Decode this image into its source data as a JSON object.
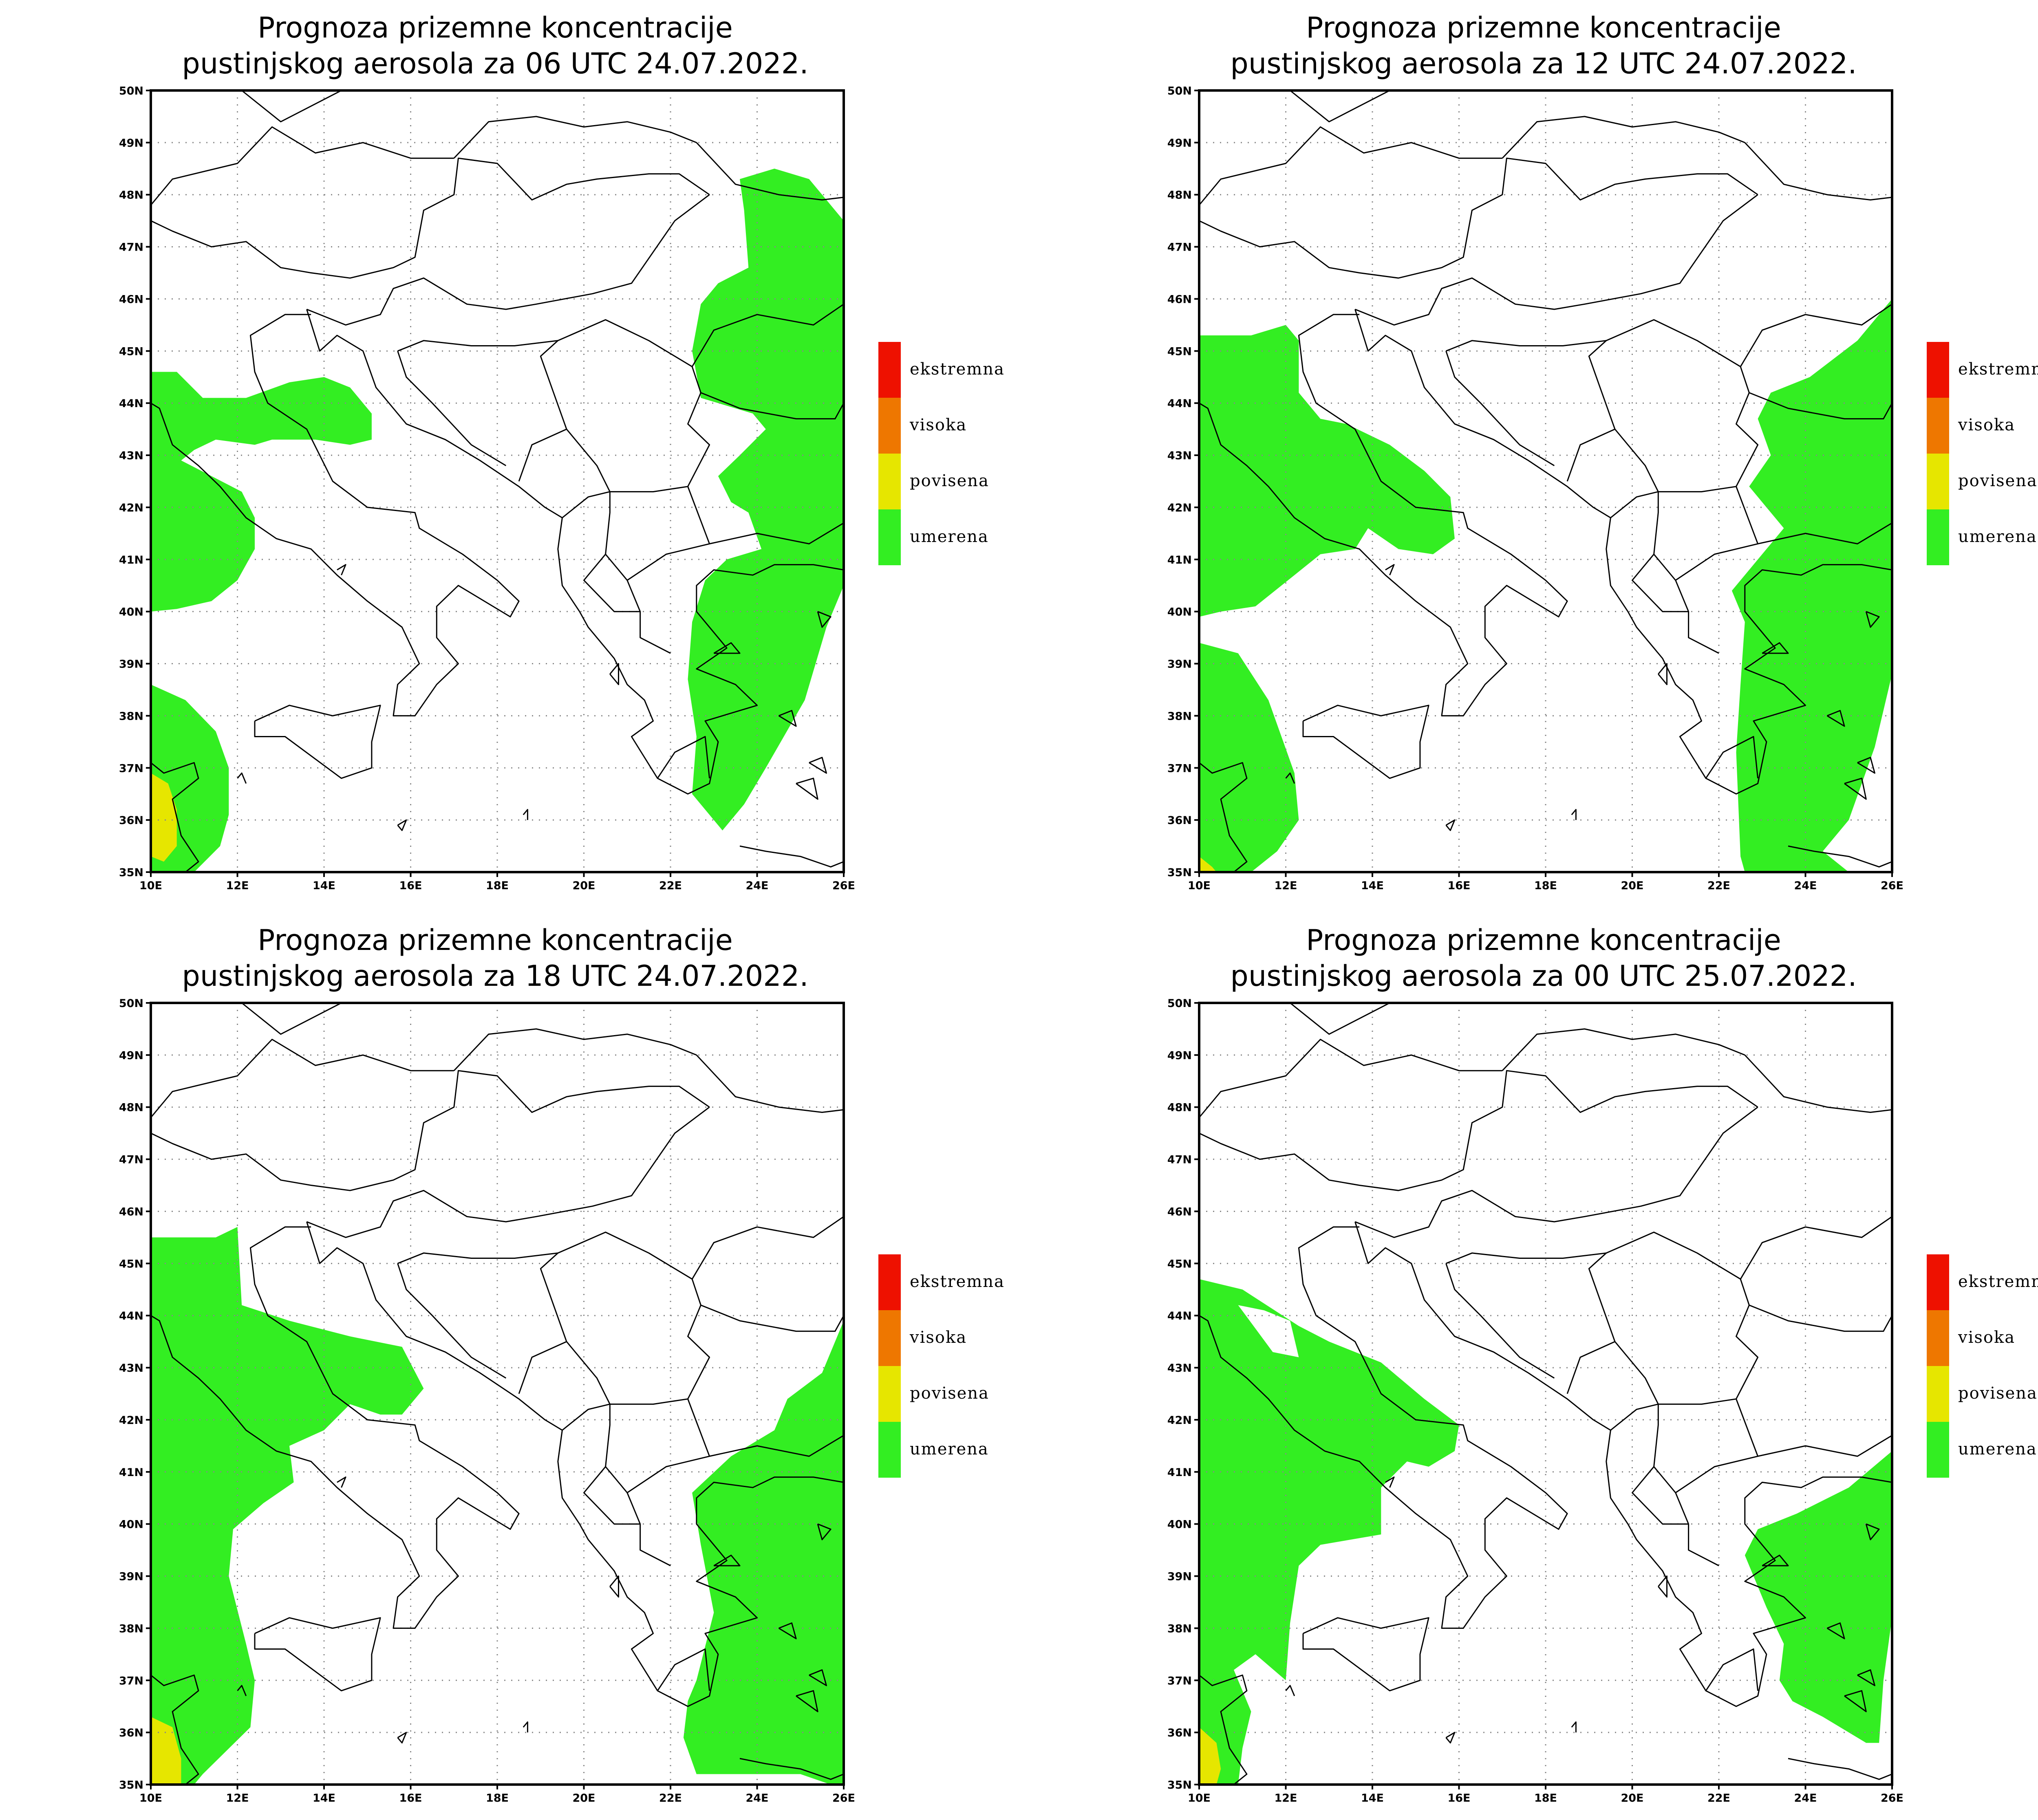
{
  "colors": {
    "umerena": "#33ee22",
    "povisena": "#e6e600",
    "visoka": "#ee7700",
    "ekstremna": "#ee1100",
    "border": "#000000",
    "grid": "#888888"
  },
  "legend": [
    {
      "key": "ekstremna",
      "label": "ekstremna"
    },
    {
      "key": "visoka",
      "label": "visoka"
    },
    {
      "key": "povisena",
      "label": "povisena"
    },
    {
      "key": "umerena",
      "label": "umerena"
    }
  ],
  "axes": {
    "lon_range": [
      10,
      26
    ],
    "lat_range": [
      35,
      50
    ],
    "x_ticks": [
      "10E",
      "12E",
      "14E",
      "16E",
      "18E",
      "20E",
      "22E",
      "24E",
      "26E"
    ],
    "y_ticks": [
      "50N",
      "49N",
      "48N",
      "47N",
      "46N",
      "45N",
      "44N",
      "43N",
      "42N",
      "41N",
      "40N",
      "39N",
      "38N",
      "37N",
      "36N",
      "35N"
    ],
    "grid": "dotted"
  },
  "panels": [
    {
      "title_line1": "Prognoza prizemne koncentracije",
      "title_line2": "pustinjskog aerosola za 06 UTC 24.07.2022.",
      "areas": [
        {
          "level": "umerena",
          "points": [
            [
              10,
              44.6
            ],
            [
              10.6,
              44.6
            ],
            [
              11.2,
              44.1
            ],
            [
              12.2,
              44.1
            ],
            [
              13.2,
              44.4
            ],
            [
              14,
              44.5
            ],
            [
              14.6,
              44.3
            ],
            [
              15.1,
              43.8
            ],
            [
              15.1,
              43.3
            ],
            [
              14.6,
              43.2
            ],
            [
              13.8,
              43.3
            ],
            [
              12.8,
              43.3
            ],
            [
              12.4,
              43.2
            ],
            [
              11.5,
              43.3
            ],
            [
              11,
              43.1
            ],
            [
              10.7,
              42.9
            ],
            [
              11.4,
              42.6
            ],
            [
              12.1,
              42.3
            ],
            [
              12.4,
              41.8
            ],
            [
              12.4,
              41.2
            ],
            [
              12,
              40.6
            ],
            [
              11.4,
              40.2
            ],
            [
              10.6,
              40.05
            ],
            [
              10,
              40.0
            ]
          ]
        },
        {
          "level": "umerena",
          "points": [
            [
              10,
              38.6
            ],
            [
              10.8,
              38.3
            ],
            [
              11.5,
              37.7
            ],
            [
              11.8,
              37
            ],
            [
              11.8,
              36.1
            ],
            [
              11.6,
              35.5
            ],
            [
              11,
              35
            ],
            [
              10,
              35
            ]
          ]
        },
        {
          "level": "umerena",
          "points": [
            [
              23.6,
              48.3
            ],
            [
              24.4,
              48.5
            ],
            [
              25.2,
              48.3
            ],
            [
              25.6,
              47.9
            ],
            [
              26,
              47.5
            ],
            [
              26,
              40.5
            ],
            [
              25.6,
              39.7
            ],
            [
              25.1,
              38.3
            ],
            [
              24.2,
              37
            ],
            [
              23.7,
              36.3
            ],
            [
              23.2,
              35.8
            ],
            [
              22.5,
              36.5
            ],
            [
              22.6,
              37.6
            ],
            [
              22.4,
              38.7
            ],
            [
              22.5,
              39.8
            ],
            [
              22.8,
              40.6
            ],
            [
              23.3,
              41
            ],
            [
              24.1,
              41.2
            ],
            [
              23.8,
              41.9
            ],
            [
              23.4,
              42.1
            ],
            [
              23.1,
              42.6
            ],
            [
              23.6,
              43
            ],
            [
              24.2,
              43.5
            ],
            [
              23.9,
              43.8
            ],
            [
              22.7,
              44.1
            ],
            [
              22.5,
              45
            ],
            [
              22.7,
              45.9
            ],
            [
              23.1,
              46.3
            ],
            [
              23.8,
              46.6
            ],
            [
              23.7,
              47.7
            ]
          ]
        },
        {
          "level": "povisena",
          "points": [
            [
              10,
              36.9
            ],
            [
              10.4,
              36.7
            ],
            [
              10.6,
              36.2
            ],
            [
              10.6,
              35.5
            ],
            [
              10.3,
              35.2
            ],
            [
              10,
              35.3
            ]
          ]
        }
      ]
    },
    {
      "title_line1": "Prognoza prizemne koncentracije",
      "title_line2": "pustinjskog aerosola za 12 UTC 24.07.2022.",
      "areas": [
        {
          "level": "umerena",
          "points": [
            [
              10,
              45.3
            ],
            [
              11.2,
              45.3
            ],
            [
              12,
              45.5
            ],
            [
              12.3,
              45.2
            ],
            [
              12.3,
              44.2
            ],
            [
              12.8,
              43.7
            ],
            [
              13.4,
              43.6
            ],
            [
              14.4,
              43.2
            ],
            [
              15.2,
              42.7
            ],
            [
              15.8,
              42.2
            ],
            [
              15.9,
              41.4
            ],
            [
              15.4,
              41.1
            ],
            [
              14.6,
              41.2
            ],
            [
              13.9,
              41.6
            ],
            [
              13.6,
              41.2
            ],
            [
              12.8,
              41.1
            ],
            [
              12.2,
              40.7
            ],
            [
              11.3,
              40.1
            ],
            [
              10.5,
              40
            ],
            [
              10,
              39.9
            ]
          ]
        },
        {
          "level": "umerena",
          "points": [
            [
              10,
              39.4
            ],
            [
              10.9,
              39.2
            ],
            [
              11.6,
              38.3
            ],
            [
              12.2,
              36.9
            ],
            [
              12.3,
              36
            ],
            [
              11.8,
              35.4
            ],
            [
              11.2,
              35
            ],
            [
              10,
              35
            ]
          ]
        },
        {
          "level": "umerena",
          "points": [
            [
              26,
              46
            ],
            [
              25.2,
              45.2
            ],
            [
              24.1,
              44.5
            ],
            [
              23.2,
              44.2
            ],
            [
              22.9,
              43.7
            ],
            [
              23.2,
              43
            ],
            [
              22.7,
              42.4
            ],
            [
              23.5,
              41.6
            ],
            [
              22.7,
              40.8
            ],
            [
              22.3,
              40.4
            ],
            [
              22.6,
              39.8
            ],
            [
              22.5,
              38.6
            ],
            [
              22.4,
              37.3
            ],
            [
              22.5,
              35.3
            ],
            [
              22.6,
              35
            ],
            [
              25,
              35
            ],
            [
              24.4,
              35.4
            ],
            [
              25,
              36
            ],
            [
              25.6,
              37.4
            ],
            [
              26,
              38.8
            ]
          ]
        },
        {
          "level": "povisena",
          "points": [
            [
              10,
              35.3
            ],
            [
              10.3,
              35.1
            ],
            [
              10.4,
              35
            ],
            [
              10,
              35
            ]
          ]
        }
      ]
    },
    {
      "title_line1": "Prognoza prizemne koncentracije",
      "title_line2": "pustinjskog aerosola za 18 UTC 24.07.2022.",
      "areas": [
        {
          "level": "umerena",
          "points": [
            [
              10,
              45.5
            ],
            [
              11.5,
              45.5
            ],
            [
              12,
              45.7
            ],
            [
              12.1,
              44.2
            ],
            [
              13.2,
              43.9
            ],
            [
              14.6,
              43.6
            ],
            [
              15.8,
              43.4
            ],
            [
              16.3,
              42.6
            ],
            [
              15.8,
              42.1
            ],
            [
              15.3,
              42.1
            ],
            [
              14.6,
              42.3
            ],
            [
              14,
              41.8
            ],
            [
              13.2,
              41.5
            ],
            [
              13.3,
              40.8
            ],
            [
              12.6,
              40.4
            ],
            [
              11.9,
              39.9
            ],
            [
              11.8,
              39
            ],
            [
              12.2,
              37.7
            ],
            [
              12.4,
              37
            ],
            [
              12.3,
              36.1
            ],
            [
              11.2,
              35.2
            ],
            [
              11,
              35
            ],
            [
              10,
              35
            ]
          ]
        },
        {
          "level": "umerena",
          "points": [
            [
              26,
              43.9
            ],
            [
              25.5,
              42.9
            ],
            [
              24.7,
              42.4
            ],
            [
              24.4,
              41.8
            ],
            [
              23.4,
              41.3
            ],
            [
              22.5,
              40.6
            ],
            [
              22.7,
              39.6
            ],
            [
              23,
              38.3
            ],
            [
              22.6,
              37
            ],
            [
              22.4,
              36.6
            ],
            [
              22.3,
              35.9
            ],
            [
              22.6,
              35.2
            ],
            [
              25,
              35.2
            ],
            [
              25.7,
              35
            ],
            [
              26,
              35
            ]
          ]
        },
        {
          "level": "povisena",
          "points": [
            [
              10,
              36.3
            ],
            [
              10.5,
              36.1
            ],
            [
              10.7,
              35.5
            ],
            [
              10.7,
              35
            ],
            [
              10,
              35
            ]
          ]
        }
      ]
    },
    {
      "title_line1": "Prognoza prizemne koncentracije",
      "title_line2": "pustinjskog aerosola za 00 UTC 25.07.2022.",
      "areas": [
        {
          "level": "umerena",
          "points": [
            [
              10,
              44.7
            ],
            [
              11,
              44.5
            ],
            [
              12.3,
              43.8
            ],
            [
              13,
              43.5
            ],
            [
              14.2,
              43.1
            ],
            [
              15.2,
              42.4
            ],
            [
              16,
              41.9
            ],
            [
              15.9,
              41.4
            ],
            [
              15.3,
              41.1
            ],
            [
              14.8,
              41.2
            ],
            [
              14.2,
              40.7
            ],
            [
              14.2,
              39.8
            ],
            [
              13.5,
              39.7
            ],
            [
              12.8,
              39.6
            ],
            [
              12.3,
              39.2
            ],
            [
              12.1,
              38.1
            ],
            [
              12,
              37
            ],
            [
              11.3,
              37.5
            ],
            [
              10.8,
              37.2
            ],
            [
              11.2,
              36.4
            ],
            [
              11,
              35.7
            ],
            [
              10.9,
              35
            ],
            [
              10,
              35
            ]
          ]
        },
        {
          "level": "hole",
          "points": [
            [
              10.9,
              44.2
            ],
            [
              11.7,
              43.3
            ],
            [
              12.3,
              43.2
            ],
            [
              12.1,
              43.9
            ],
            [
              11.5,
              44.1
            ]
          ]
        },
        {
          "level": "umerena",
          "points": [
            [
              26,
              41.4
            ],
            [
              25,
              40.7
            ],
            [
              23.8,
              40.2
            ],
            [
              22.9,
              39.9
            ],
            [
              22.6,
              39.4
            ],
            [
              23.1,
              38.4
            ],
            [
              23.5,
              37.7
            ],
            [
              23.4,
              37
            ],
            [
              23.7,
              36.6
            ],
            [
              24.4,
              36.3
            ],
            [
              25.4,
              35.8
            ],
            [
              25.7,
              35.8
            ],
            [
              25.8,
              37
            ],
            [
              26,
              38.2
            ]
          ]
        },
        {
          "level": "povisena",
          "points": [
            [
              10,
              36.1
            ],
            [
              10.4,
              35.8
            ],
            [
              10.5,
              35.3
            ],
            [
              10.4,
              35
            ],
            [
              10,
              35
            ]
          ]
        }
      ]
    }
  ]
}
